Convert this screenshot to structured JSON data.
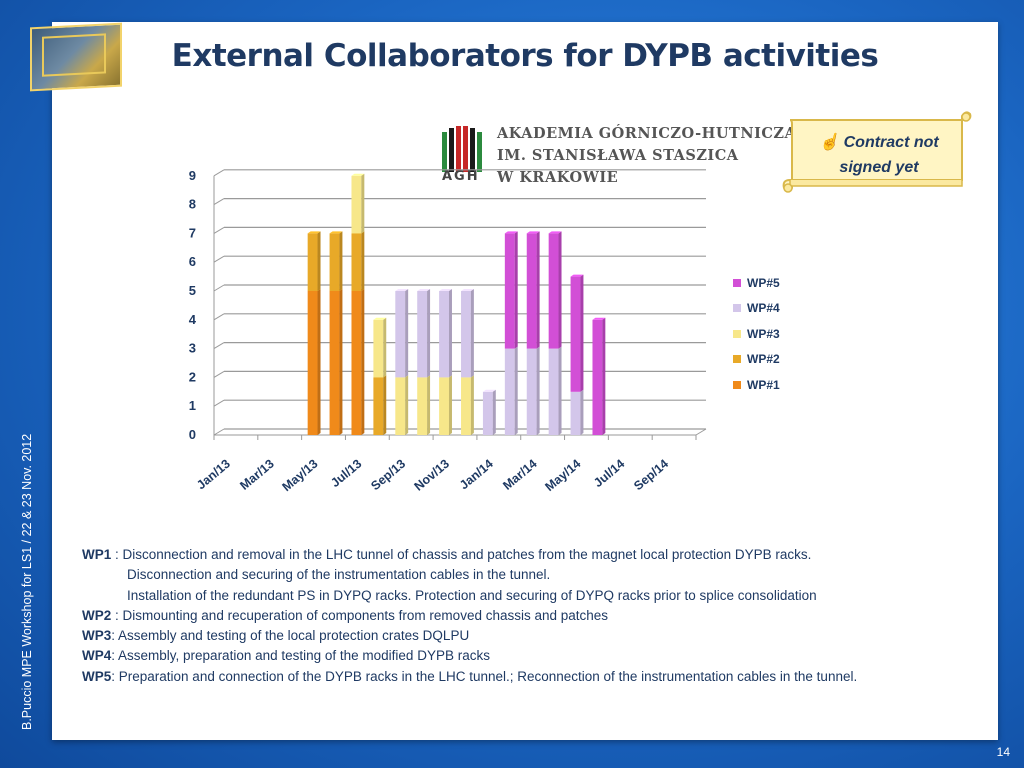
{
  "slide": {
    "title": "External Collaborators for DYPB activities",
    "side_text": "B.Puccio  MPE Workshop for LS1 /  22 & 23 Nov. 2012",
    "page_number": "14"
  },
  "logo": {
    "line1": "AKADEMIA GÓRNICZO-HUTNICZA",
    "line2": "IM. STANISŁAWA STASZICA",
    "line3": "W KRAKOWIE",
    "abbr": "AGH"
  },
  "note": {
    "icon": "hand-pointing-up-icon",
    "text1": "Contract not",
    "text2": "signed yet"
  },
  "chart_data": {
    "type": "bar",
    "stacked": true,
    "categories": [
      "Jan/13",
      "Feb/13",
      "Mar/13",
      "Apr/13",
      "May/13",
      "Jun/13",
      "Jul/13",
      "Aug/13",
      "Sep/13",
      "Oct/13",
      "Nov/13",
      "Dec/13",
      "Jan/14",
      "Feb/14",
      "Mar/14",
      "Apr/14",
      "May/14",
      "Jun/14",
      "Jul/14",
      "Aug/14",
      "Sep/14",
      "Oct/14"
    ],
    "tick_labels": [
      "Jan/13",
      "Mar/13",
      "May/13",
      "Jul/13",
      "Sep/13",
      "Nov/13",
      "Jan/14",
      "Mar/14",
      "May/14",
      "Jul/14",
      "Sep/14"
    ],
    "ylim": [
      0,
      9
    ],
    "yticks": [
      0,
      1,
      2,
      3,
      4,
      5,
      6,
      7,
      8,
      9
    ],
    "series": [
      {
        "name": "WP#1",
        "color": "#f08a1a",
        "values": [
          0,
          0,
          0,
          0,
          5,
          5,
          5,
          0,
          0,
          0,
          0,
          0,
          0,
          0,
          0,
          0,
          0,
          0,
          0,
          0,
          0,
          0
        ]
      },
      {
        "name": "WP#2",
        "color": "#e8a928",
        "values": [
          0,
          0,
          0,
          0,
          2,
          2,
          2,
          2,
          0,
          0,
          0,
          0,
          0,
          0,
          0,
          0,
          0,
          0,
          0,
          0,
          0,
          0
        ]
      },
      {
        "name": "WP#3",
        "color": "#f7e78a",
        "values": [
          0,
          0,
          0,
          0,
          0,
          0,
          2,
          2,
          2,
          2,
          2,
          2,
          0,
          0,
          0,
          0,
          0,
          0,
          0,
          0,
          0,
          0
        ]
      },
      {
        "name": "WP#4",
        "color": "#d3c6ea",
        "values": [
          0,
          0,
          0,
          0,
          0,
          0,
          0,
          0,
          3,
          3,
          3,
          3,
          1.5,
          3,
          3,
          3,
          1.5,
          0,
          0,
          0,
          0,
          0
        ]
      },
      {
        "name": "WP#5",
        "color": "#d24fd6",
        "values": [
          0,
          0,
          0,
          0,
          0,
          0,
          0,
          0,
          0,
          0,
          0,
          0,
          0,
          4,
          4,
          4,
          4,
          4,
          0,
          0,
          0,
          0
        ]
      }
    ],
    "legend_order": [
      "WP#5",
      "WP#4",
      "WP#3",
      "WP#2",
      "WP#1"
    ],
    "legend_position": "right",
    "grid": true
  },
  "descriptions": {
    "wp1_label": "WP1",
    "wp1_text": " : Disconnection and removal in the LHC tunnel of chassis and patches from the magnet local protection DYPB racks.",
    "wp1_text2": "Disconnection and securing of the instrumentation cables in the tunnel.",
    "wp1_text3": "Installation of the redundant PS in DYPQ racks. Protection and securing of DYPQ racks prior to splice consolidation",
    "wp2_label": "WP2",
    "wp2_text": " : Dismounting and recuperation of components from removed chassis and patches",
    "wp3_label": "WP3",
    "wp3_text": ": Assembly and testing of the local protection crates DQLPU",
    "wp4_label": "WP4",
    "wp4_text": ": Assembly, preparation and testing of the modified DYPB racks",
    "wp5_label": "WP5",
    "wp5_text": ": Preparation and connection of the DYPB racks in the LHC tunnel.; Reconnection of the instrumentation cables in the tunnel."
  }
}
